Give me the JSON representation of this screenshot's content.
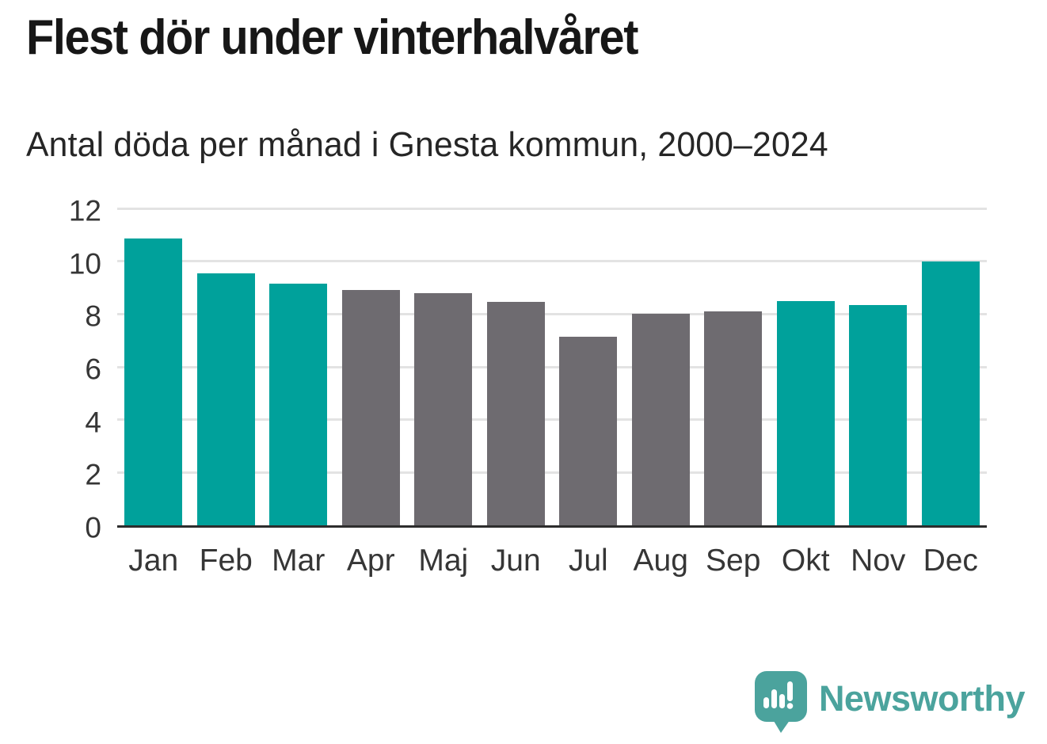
{
  "header": {
    "title": "Flest dör under vinterhalvåret",
    "subtitle": "Antal döda per månad i Gnesta kommun, 2000–2024"
  },
  "chart_data": {
    "type": "bar",
    "title": "Flest dör under vinterhalvåret",
    "subtitle": "Antal döda per månad i Gnesta kommun, 2000–2024",
    "categories": [
      "Jan",
      "Feb",
      "Mar",
      "Apr",
      "Maj",
      "Jun",
      "Jul",
      "Aug",
      "Sep",
      "Okt",
      "Nov",
      "Dec"
    ],
    "values": [
      10.85,
      9.55,
      9.15,
      8.9,
      8.8,
      8.45,
      7.15,
      8.0,
      8.1,
      8.5,
      8.35,
      10.0
    ],
    "bar_colors": [
      "teal",
      "teal",
      "teal",
      "gray",
      "gray",
      "gray",
      "gray",
      "gray",
      "gray",
      "teal",
      "teal",
      "teal"
    ],
    "xlabel": "",
    "ylabel": "",
    "ylim": [
      0,
      12
    ],
    "yticks": [
      0,
      2,
      4,
      6,
      8,
      10,
      12
    ],
    "grid": true,
    "legend_position": "none"
  },
  "colors": {
    "teal_bar": "#00a19b",
    "gray_bar": "#6e6b70",
    "gridline": "#e3e3e3",
    "axis_line": "#2d2d2d",
    "title_text": "#171717",
    "tick_text": "#363636",
    "logo_teal": "#4ba39d"
  },
  "logo": {
    "wordmark": "Newsworthy",
    "icon": "newsworthy-speech-bubble-chart-icon"
  }
}
